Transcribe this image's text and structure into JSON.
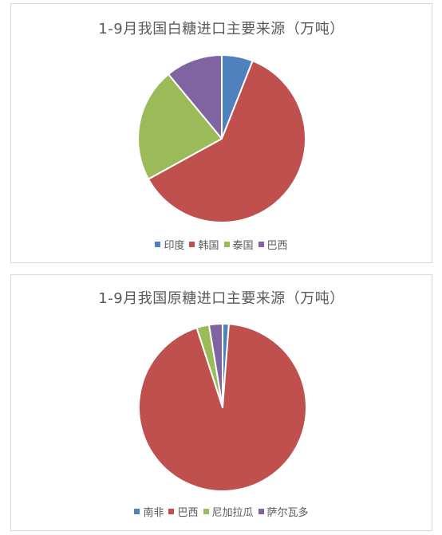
{
  "chart_data": [
    {
      "type": "pie",
      "title": "1-9月我国白糖进口主要来源（万吨）",
      "categories": [
        "印度",
        "韩国",
        "泰国",
        "巴西"
      ],
      "values": [
        6,
        61,
        22,
        11
      ],
      "colors": [
        "#4f81bd",
        "#c0504d",
        "#9bbb59",
        "#8064a2"
      ],
      "legend": "bottom"
    },
    {
      "type": "pie",
      "title": "1-9月我国原糖进口主要来源（万吨）",
      "categories": [
        "南非",
        "巴西",
        "尼加拉瓜",
        "萨尔瓦多"
      ],
      "values": [
        1.2,
        93.8,
        2.4,
        2.6
      ],
      "colors": [
        "#4f81bd",
        "#c0504d",
        "#9bbb59",
        "#8064a2"
      ],
      "legend": "bottom"
    }
  ]
}
